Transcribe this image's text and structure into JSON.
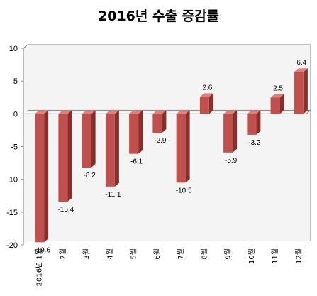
{
  "chart_data": {
    "type": "bar",
    "title": "2016년 수출 증감률",
    "xlabel": "",
    "ylabel": "",
    "ylim": [
      -20,
      10
    ],
    "yticks": [
      10,
      5,
      0,
      -5,
      -10,
      -15,
      -20
    ],
    "grid": false,
    "legend": "none",
    "categories": [
      "2016년 1월",
      "2월",
      "3월",
      "4월",
      "5월",
      "6월",
      "7월",
      "8월",
      "9월",
      "10월",
      "11월",
      "12월"
    ],
    "values": [
      -19.6,
      -13.4,
      -8.2,
      -11.1,
      -6.1,
      -2.9,
      -10.5,
      2.6,
      -5.9,
      -3.2,
      2.5,
      6.4
    ],
    "value_labels": [
      "-19.6",
      "-13.4",
      "-8.2",
      "-11.1",
      "-6.1",
      "-2.9",
      "-10.5",
      "2.6",
      "-5.9",
      "-3.2",
      "2.5",
      "6.4"
    ],
    "colors": {
      "bar_front": "#c0504d",
      "bar_side": "#8b2d2b",
      "bar_top": "#d9827f",
      "axis": "#888888",
      "wall": "#f4f4f4"
    }
  }
}
